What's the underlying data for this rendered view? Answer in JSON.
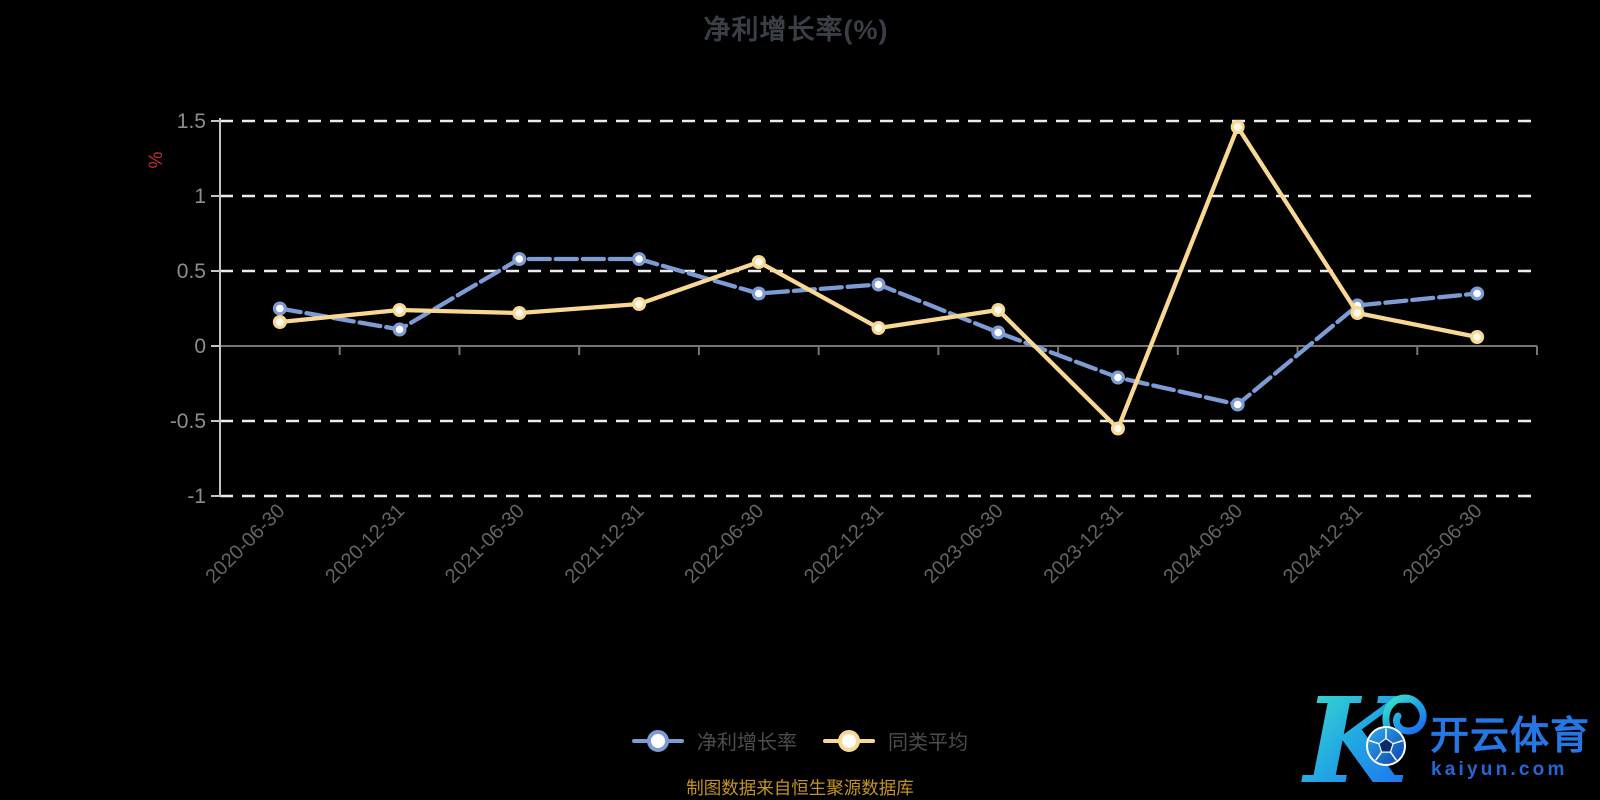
{
  "caption": "制图数据来自恒生聚源数据库",
  "logo": {
    "monogram": "K",
    "brand": "开云体育",
    "domain": "kaiyun.com"
  },
  "colors": {
    "background": "#000000",
    "title_text": "#3a3e45",
    "grid_dash": "#ececec",
    "zero_line": "#757575",
    "axis_line": "#c4c4c4",
    "axis_label": "#8d8d8d",
    "x_label": "#646464",
    "unit_label_red": "#bf3232",
    "legend_text": "#4d4d4d",
    "caption_gold": "#c5941f",
    "series_blue": "#7d9bd4",
    "series_yellow": "#f9d893",
    "logo_blue": "#2577e6",
    "logo_teal": "#3fe8c5"
  },
  "chart_data": {
    "type": "line",
    "title": "净利增长率(%)",
    "xlabel": "",
    "ylabel": "%",
    "ylim": [
      -1,
      1.5
    ],
    "y_interval": 0.5,
    "grid": "horizontal-dashed",
    "legend_position": "bottom-center",
    "y_ticks": [
      {
        "value": 1.5,
        "label": "1.5"
      },
      {
        "value": 1,
        "label": "1"
      },
      {
        "value": 0.5,
        "label": "0.5"
      },
      {
        "value": 0,
        "label": "0"
      },
      {
        "value": -0.5,
        "label": "-0.5"
      },
      {
        "value": -1,
        "label": "-1"
      }
    ],
    "categories": [
      "2020-06-30",
      "2020-12-31",
      "2021-06-30",
      "2021-12-31",
      "2022-06-30",
      "2022-12-31",
      "2023-06-30",
      "2023-12-31",
      "2024-06-30",
      "2024-12-31",
      "2025-06-30"
    ],
    "series": [
      {
        "name": "净利增长率",
        "color": "#7d9bd4",
        "marker_fill": "#ffffff",
        "line_style": "dashed",
        "values": [
          0.25,
          0.11,
          0.58,
          0.58,
          0.35,
          0.41,
          0.09,
          -0.21,
          -0.39,
          0.27,
          0.35
        ]
      },
      {
        "name": "同类平均",
        "color": "#f9d893",
        "marker_fill": "#fffdf3",
        "line_style": "solid",
        "values": [
          0.16,
          0.24,
          0.22,
          0.28,
          0.56,
          0.12,
          0.24,
          -0.55,
          1.46,
          0.22,
          0.06
        ]
      }
    ]
  }
}
